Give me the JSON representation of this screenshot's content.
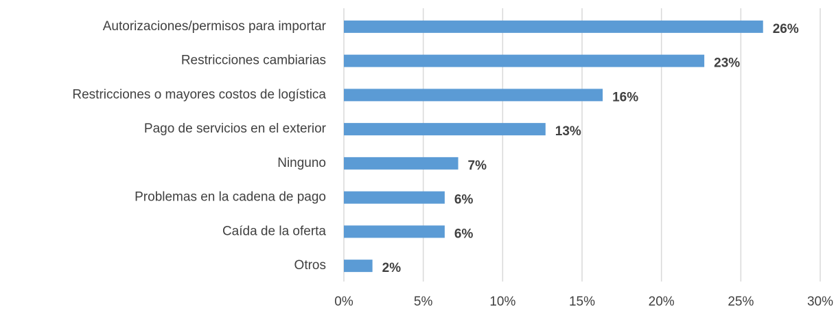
{
  "chart_data": {
    "type": "barh",
    "categories": [
      "Autorizaciones/permisos para importar",
      "Restricciones cambiarias",
      "Restricciones o mayores costos de logística",
      "Pago de servicios en el exterior",
      "Ninguno",
      "Problemas en la cadena de pago",
      "Caída de la oferta",
      "Otros"
    ],
    "values": [
      26.4,
      22.7,
      16.3,
      12.7,
      7.2,
      6.35,
      6.35,
      1.8
    ],
    "value_labels": [
      "26%",
      "23%",
      "16%",
      "13%",
      "7%",
      "6%",
      "6%",
      "2%"
    ],
    "color": "#5b9bd5",
    "xlim": [
      0,
      30
    ],
    "xticks": [
      {
        "value": 0,
        "label": "0%"
      },
      {
        "value": 5,
        "label": "5%"
      },
      {
        "value": 10,
        "label": "10%"
      },
      {
        "value": 15,
        "label": "15%"
      },
      {
        "value": 20,
        "label": "20%"
      },
      {
        "value": 25,
        "label": "25%"
      },
      {
        "value": 30,
        "label": "30%"
      }
    ],
    "grid": true
  }
}
